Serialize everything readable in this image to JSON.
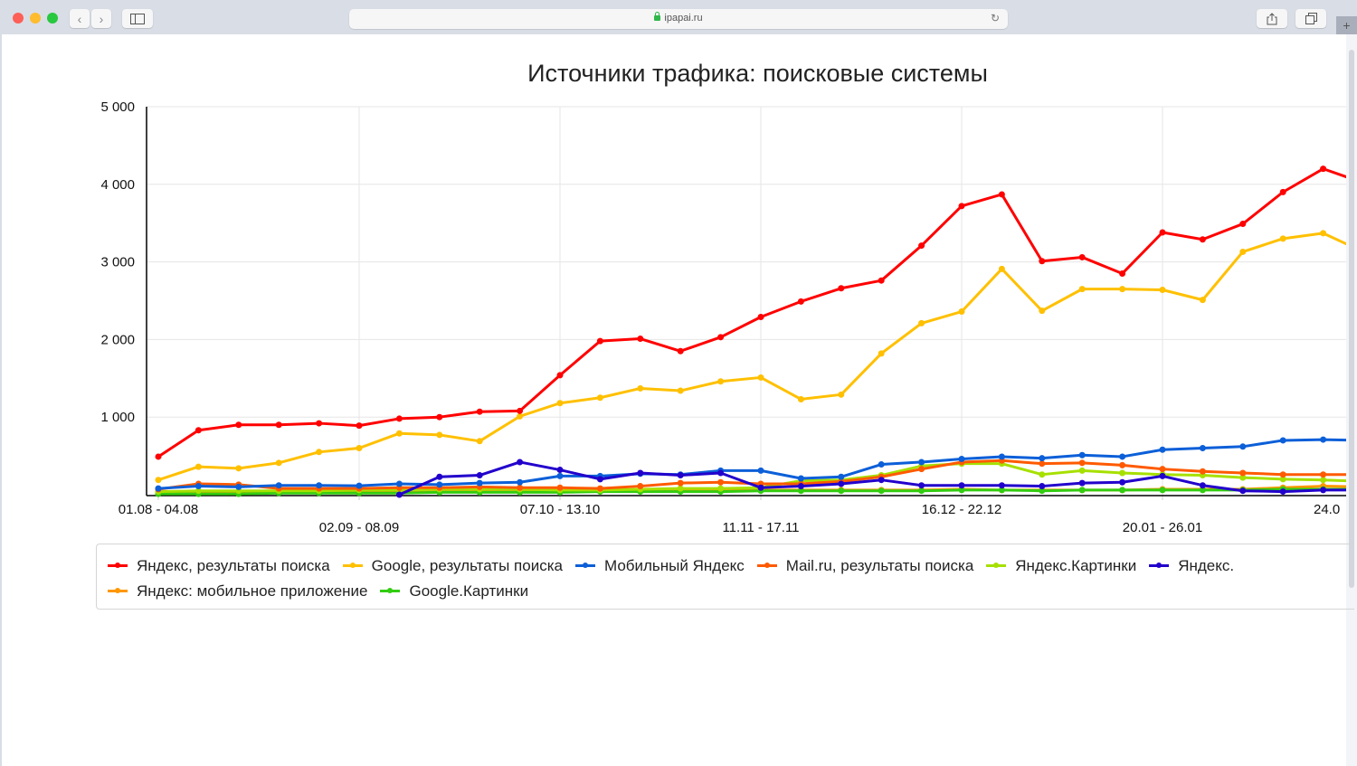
{
  "browser": {
    "url": "ipapai.ru",
    "back_icon": "‹",
    "forward_icon": "›",
    "reload_icon": "↻",
    "new_tab_icon": "+"
  },
  "chart_data": {
    "type": "line",
    "title": "Источники трафика: поисковые системы",
    "xlabel": "",
    "ylabel": "",
    "ylim": [
      0,
      5000
    ],
    "yticks": [
      "5 000",
      "4 000",
      "3 000",
      "2 000",
      "1 000"
    ],
    "ytick_values": [
      5000,
      4000,
      3000,
      2000,
      1000
    ],
    "grid": true,
    "legend_position": "bottom",
    "x_labels": [
      {
        "index": 0,
        "label": "01.08 - 04.08",
        "row": 0
      },
      {
        "index": 5,
        "label": "02.09 - 08.09",
        "row": 1
      },
      {
        "index": 10,
        "label": "07.10 - 13.10",
        "row": 0
      },
      {
        "index": 15,
        "label": "11.11 - 17.11",
        "row": 1
      },
      {
        "index": 20,
        "label": "16.12 - 22.12",
        "row": 0
      },
      {
        "index": 25,
        "label": "20.01 - 26.01",
        "row": 1
      },
      {
        "index": 30,
        "label": "24.0",
        "row": 0
      }
    ],
    "point_count": 31,
    "series": [
      {
        "name": "Яндекс, результаты поиска",
        "color": "#ff0000",
        "values": [
          490,
          830,
          900,
          900,
          920,
          890,
          980,
          1000,
          1070,
          1080,
          1540,
          1980,
          2010,
          1850,
          2030,
          2290,
          2490,
          2660,
          2760,
          3210,
          3720,
          3870,
          3010,
          3060,
          2850,
          3380,
          3290,
          3490,
          3900,
          4200,
          4020
        ]
      },
      {
        "name": "Google, результаты поиска",
        "color": "#ffc000",
        "values": [
          190,
          360,
          340,
          410,
          550,
          600,
          790,
          770,
          690,
          1010,
          1180,
          1250,
          1370,
          1340,
          1460,
          1510,
          1230,
          1290,
          1820,
          2210,
          2360,
          2910,
          2370,
          2650,
          2650,
          2640,
          2510,
          3130,
          3300,
          3370,
          3130
        ]
      },
      {
        "name": "Мобильный Яндекс",
        "color": "#0c5fd8",
        "values": [
          80,
          110,
          100,
          120,
          120,
          115,
          140,
          130,
          150,
          160,
          240,
          240,
          270,
          260,
          310,
          310,
          210,
          230,
          390,
          420,
          460,
          490,
          470,
          510,
          490,
          580,
          600,
          620,
          700,
          710,
          700
        ]
      },
      {
        "name": "Mail.ru, результаты поиска",
        "color": "#ff5a00",
        "values": [
          70,
          140,
          130,
          80,
          80,
          80,
          90,
          90,
          100,
          90,
          90,
          80,
          110,
          150,
          160,
          140,
          140,
          170,
          230,
          330,
          420,
          440,
          400,
          410,
          380,
          330,
          300,
          280,
          260,
          260,
          260
        ]
      },
      {
        "name": "Яндекс.Картинки",
        "color": "#a6e000",
        "values": [
          40,
          50,
          50,
          50,
          50,
          60,
          60,
          70,
          70,
          70,
          60,
          60,
          70,
          80,
          80,
          90,
          180,
          190,
          250,
          370,
          400,
          400,
          260,
          310,
          280,
          260,
          250,
          220,
          200,
          190,
          170
        ]
      },
      {
        "name": "Яндекс.",
        "color": "#2200cc",
        "values": [
          null,
          null,
          null,
          null,
          null,
          null,
          0,
          230,
          250,
          420,
          320,
          200,
          280,
          250,
          280,
          90,
          110,
          140,
          190,
          120,
          120,
          120,
          110,
          150,
          160,
          240,
          120,
          50,
          40,
          60,
          60
        ]
      },
      {
        "name": "Яндекс: мобильное приложение",
        "color": "#ff9800",
        "values": [
          30,
          30,
          30,
          30,
          30,
          40,
          40,
          40,
          40,
          50,
          50,
          50,
          60,
          60,
          60,
          60,
          60,
          60,
          60,
          60,
          70,
          60,
          60,
          60,
          60,
          70,
          70,
          70,
          90,
          110,
          100
        ]
      },
      {
        "name": "Google.Картинки",
        "color": "#33cc11",
        "values": [
          10,
          10,
          10,
          20,
          20,
          20,
          20,
          30,
          30,
          30,
          30,
          40,
          40,
          40,
          40,
          50,
          50,
          50,
          50,
          50,
          60,
          60,
          50,
          60,
          60,
          60,
          60,
          60,
          70,
          70,
          70
        ]
      }
    ]
  },
  "legend": {
    "row1": [
      "Яндекс, результаты поиска",
      "Google, результаты поиска",
      "Мобильный Яндекс",
      "Mail.ru, результаты поиска",
      "Яндекс.Картинки",
      "Яндекс."
    ],
    "row2": [
      "Яндекс: мобильное приложение",
      "Google.Картинки"
    ]
  }
}
